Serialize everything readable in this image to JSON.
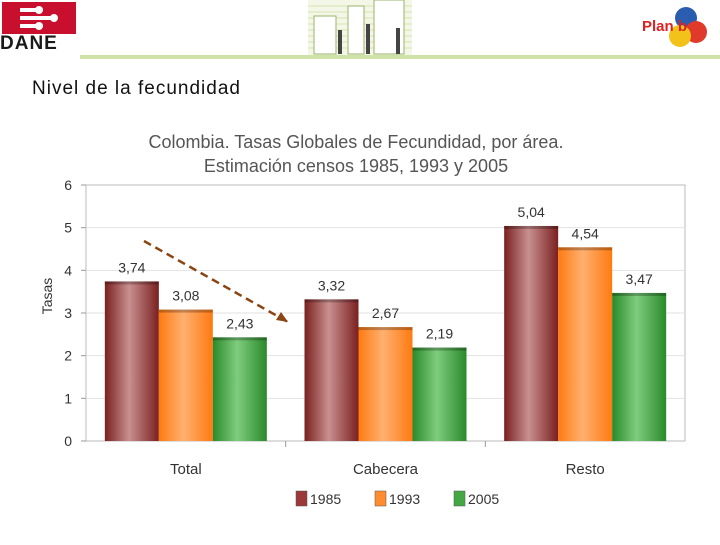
{
  "header": {
    "logo_left_text": "DANE",
    "logo_right_text": "Plan b"
  },
  "page_title": "Nivel de la fecundidad",
  "colors": {
    "s1985": "#9c3a3a",
    "s1993": "#ff8c2e",
    "s2005": "#43a843",
    "trend_arrow": "#8b4513",
    "header_rule": "#cfe2a8",
    "dane_red": "#c8102e"
  },
  "chart_data": {
    "type": "bar",
    "title": "Colombia. Tasas Globales de Fecundidad, por área.",
    "subtitle": "Estimación censos 1985, 1993 y 2005",
    "xlabel": "",
    "ylabel": "Tasas",
    "ylim": [
      0,
      6
    ],
    "yticks": [
      0,
      1,
      2,
      3,
      4,
      5,
      6
    ],
    "categories": [
      "Total",
      "Cabecera",
      "Resto"
    ],
    "series": [
      {
        "name": "1985",
        "values": [
          3.74,
          3.32,
          5.04
        ],
        "labels": [
          "3,74",
          "3,32",
          "5,04"
        ]
      },
      {
        "name": "1993",
        "values": [
          3.08,
          2.67,
          4.54
        ],
        "labels": [
          "3,08",
          "2,67",
          "4,54"
        ]
      },
      {
        "name": "2005",
        "values": [
          2.43,
          2.19,
          3.47
        ],
        "labels": [
          "2,43",
          "2,19",
          "3,47"
        ]
      }
    ],
    "legend_position": "bottom",
    "annotation": "dashed downward trend arrow over Total"
  }
}
